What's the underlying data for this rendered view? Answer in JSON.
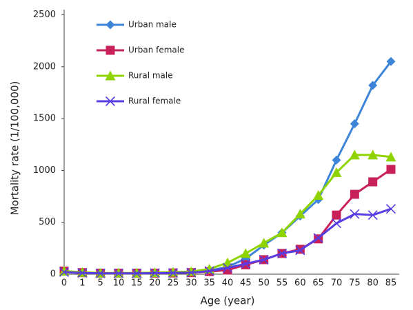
{
  "chart_data": {
    "type": "line",
    "x_label": "Age (year)",
    "y_label": "Mortality rate (1/100,000)",
    "categories": [
      0,
      1,
      5,
      10,
      15,
      20,
      25,
      30,
      35,
      40,
      45,
      50,
      55,
      60,
      65,
      70,
      75,
      80,
      85
    ],
    "series": [
      {
        "name": "Urban male",
        "color": "#3d85d8",
        "marker": "diamond",
        "values": [
          25,
          15,
          10,
          10,
          10,
          12,
          15,
          20,
          35,
          70,
          150,
          280,
          400,
          560,
          720,
          1100,
          1450,
          1820,
          2050
        ]
      },
      {
        "name": "Urban female",
        "color": "#c8215a",
        "marker": "square",
        "values": [
          30,
          15,
          10,
          10,
          10,
          10,
          12,
          15,
          25,
          40,
          90,
          140,
          200,
          240,
          340,
          570,
          770,
          890,
          1010
        ]
      },
      {
        "name": "Rural male",
        "color": "#8fd400",
        "marker": "triangle",
        "values": [
          30,
          18,
          12,
          12,
          12,
          15,
          20,
          25,
          50,
          110,
          200,
          300,
          400,
          580,
          760,
          980,
          1150,
          1150,
          1130
        ]
      },
      {
        "name": "Rural female",
        "color": "#5a3de0",
        "marker": "cross",
        "values": [
          20,
          12,
          8,
          8,
          8,
          10,
          12,
          15,
          30,
          60,
          100,
          140,
          200,
          230,
          350,
          490,
          580,
          570,
          630
        ]
      }
    ],
    "ylim": [
      0,
      2550
    ],
    "yticks": [
      0,
      500,
      1000,
      1500,
      2000,
      2500
    ],
    "grid": false,
    "legend": "upper left"
  }
}
